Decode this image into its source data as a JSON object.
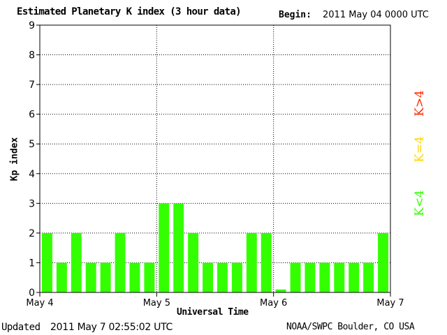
{
  "header": {
    "title": "Estimated Planetary K index (3 hour data)",
    "begin_label": "Begin:",
    "begin_value": "2011 May 04 0000 UTC"
  },
  "footer": {
    "updated_label": "Updated",
    "updated_value": "2011 May  7 02:55:02 UTC",
    "source": "NOAA/SWPC Boulder, CO USA"
  },
  "legend": {
    "high": {
      "label": "K>4",
      "color": "#ff2a00"
    },
    "equal": {
      "label": "K=4",
      "color": "#ffd700"
    },
    "low": {
      "label": "K<4",
      "color": "#33ff00"
    }
  },
  "chart_data": {
    "type": "bar",
    "title": "Estimated Planetary K index (3 hour data)",
    "xlabel": "Universal Time",
    "ylabel": "Kp index",
    "ylim": [
      0,
      9
    ],
    "yticks": [
      0,
      1,
      2,
      3,
      4,
      5,
      6,
      7,
      8,
      9
    ],
    "x_tick_labels": [
      "May 4",
      "May 5",
      "May 6",
      "May 7"
    ],
    "bar_color": "#33ff00",
    "grid": "dotted",
    "legend_position": "right",
    "series": [
      {
        "values": [
          2,
          1,
          2,
          1,
          1,
          2,
          1,
          1,
          3,
          3,
          2,
          1,
          1,
          1,
          2,
          2,
          0.1,
          1,
          1,
          1,
          1,
          1,
          1,
          2
        ]
      }
    ]
  }
}
